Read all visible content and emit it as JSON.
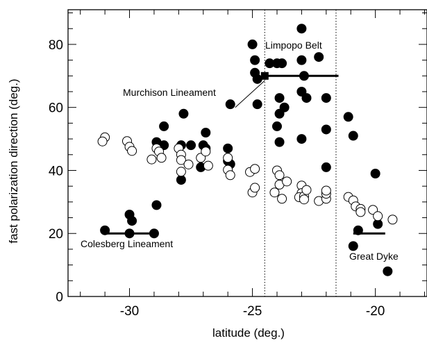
{
  "chart_data": {
    "type": "scatter",
    "title": "",
    "xlabel": "latitude (deg.)",
    "ylabel": "fast polarization direction (deg.)",
    "xlim": [
      -32.5,
      -17.9
    ],
    "ylim": [
      0,
      91
    ],
    "x_ticks": [
      -30,
      -25,
      -20
    ],
    "y_ticks": [
      0,
      20,
      40,
      60,
      80
    ],
    "x_tick_labels": [
      "-30",
      "-25",
      "-20"
    ],
    "y_tick_labels": [
      "0",
      "20",
      "40",
      "60",
      "80"
    ],
    "grid": false,
    "legend": "none",
    "series": [
      {
        "marker": "filled-circle",
        "color": "#000000",
        "points": [
          [
            -31,
            21
          ],
          [
            -30,
            26
          ],
          [
            -29.9,
            24
          ],
          [
            -30,
            20
          ],
          [
            -29,
            20
          ],
          [
            -28.9,
            29
          ],
          [
            -28.9,
            49
          ],
          [
            -28.6,
            48
          ],
          [
            -28.6,
            54
          ],
          [
            -27.9,
            37
          ],
          [
            -27.9,
            48
          ],
          [
            -27.8,
            58
          ],
          [
            -27.5,
            48
          ],
          [
            -27,
            48
          ],
          [
            -26.9,
            52
          ],
          [
            -26.9,
            47
          ],
          [
            -27.1,
            41
          ],
          [
            -26.0,
            43
          ],
          [
            -25.9,
            61
          ],
          [
            -26.0,
            47
          ],
          [
            -25.9,
            42
          ],
          [
            -25.0,
            80
          ],
          [
            -24.9,
            75
          ],
          [
            -24.9,
            71
          ],
          [
            -24.8,
            69
          ],
          [
            -24.8,
            61
          ],
          [
            -24.3,
            74
          ],
          [
            -24.0,
            74
          ],
          [
            -23.8,
            74
          ],
          [
            -24.0,
            54
          ],
          [
            -23.9,
            49
          ],
          [
            -23.9,
            58
          ],
          [
            -23.9,
            63
          ],
          [
            -23.7,
            60
          ],
          [
            -23.0,
            85
          ],
          [
            -23.0,
            75
          ],
          [
            -22.9,
            70
          ],
          [
            -22.8,
            63
          ],
          [
            -23.0,
            65
          ],
          [
            -23.0,
            50
          ],
          [
            -22.3,
            76
          ],
          [
            -22.0,
            63
          ],
          [
            -22.0,
            53
          ],
          [
            -22.0,
            41
          ],
          [
            -21.1,
            57
          ],
          [
            -20.9,
            51
          ],
          [
            -20.7,
            21
          ],
          [
            -20.9,
            16
          ],
          [
            -20.0,
            39
          ],
          [
            -19.9,
            23
          ],
          [
            -19.5,
            8
          ]
        ]
      },
      {
        "marker": "open-circle",
        "color": "#000000",
        "points": [
          [
            -31.0,
            50.5
          ],
          [
            -31.1,
            49.2
          ],
          [
            -30.1,
            49.3
          ],
          [
            -30.0,
            47.5
          ],
          [
            -29.9,
            46.2
          ],
          [
            -29.1,
            43.5
          ],
          [
            -28.9,
            47
          ],
          [
            -28.8,
            46
          ],
          [
            -28.7,
            44
          ],
          [
            -28.0,
            47
          ],
          [
            -27.9,
            45
          ],
          [
            -27.9,
            43.3
          ],
          [
            -27.9,
            39.6
          ],
          [
            -27.6,
            41.9
          ],
          [
            -27.1,
            44
          ],
          [
            -26.9,
            46
          ],
          [
            -26.8,
            41.5
          ],
          [
            -26.0,
            44
          ],
          [
            -26.0,
            40.2
          ],
          [
            -25.9,
            38.5
          ],
          [
            -25.1,
            39.5
          ],
          [
            -24.9,
            40.5
          ],
          [
            -25.0,
            33
          ],
          [
            -24.9,
            34.5
          ],
          [
            -24.1,
            33
          ],
          [
            -24.0,
            40
          ],
          [
            -23.9,
            38.5
          ],
          [
            -23.9,
            35.5
          ],
          [
            -23.8,
            31
          ],
          [
            -23.6,
            36.5
          ],
          [
            -23.0,
            35.2
          ],
          [
            -23.0,
            32.8
          ],
          [
            -23.1,
            31.5
          ],
          [
            -22.9,
            31.8
          ],
          [
            -22.8,
            33.8
          ],
          [
            -22.9,
            30.8
          ],
          [
            -22.3,
            30.3
          ],
          [
            -22.0,
            31
          ],
          [
            -22.0,
            32.6
          ],
          [
            -22.0,
            33.6
          ],
          [
            -21.1,
            31.6
          ],
          [
            -20.9,
            30.5
          ],
          [
            -20.8,
            28.6
          ],
          [
            -20.6,
            27.8
          ],
          [
            -20.6,
            26.8
          ],
          [
            -20.1,
            27.5
          ],
          [
            -19.9,
            25.5
          ],
          [
            -19.3,
            24.4
          ]
        ]
      }
    ],
    "segments": [
      {
        "x": [
          -31,
          -29
        ],
        "y": [
          20,
          20
        ]
      },
      {
        "x": [
          -24.5,
          -21.5
        ],
        "y": [
          70,
          70
        ]
      },
      {
        "x": [
          -20.9,
          -19.6
        ],
        "y": [
          20,
          20
        ]
      }
    ],
    "connector_line": {
      "x": [
        -25.7,
        -24.5
      ],
      "y": [
        60,
        68.5
      ]
    },
    "square_marker": {
      "x": -24.5,
      "y": 70
    },
    "vertical_lines": [
      -24.5,
      -21.6
    ],
    "annotations": [
      "Limpopo Belt",
      "Murchison Lineament",
      "Colesberg Lineament",
      "Great Dyke"
    ]
  }
}
